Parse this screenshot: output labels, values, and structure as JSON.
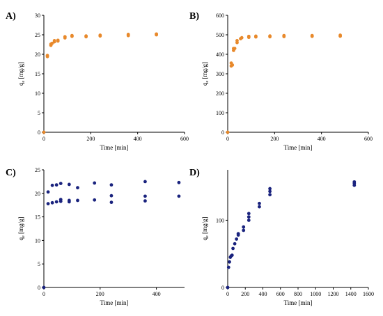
{
  "chart_data": [
    {
      "type": "scatter",
      "panel_label": "A)",
      "xlabel": "Time [min]",
      "ylabel": "qe [mg/g]",
      "ylabel_main": "q",
      "ylabel_sub": "e",
      "ylabel_unit": " [mg/g]",
      "xlim": [
        0,
        600
      ],
      "ylim": [
        0,
        30
      ],
      "xticks": [
        0,
        200,
        400,
        600
      ],
      "yticks": [
        0,
        5,
        10,
        15,
        20,
        25,
        30
      ],
      "marker_color": "#e8892b",
      "series": [
        {
          "points": [
            [
              0,
              0
            ],
            [
              15,
              19.4
            ],
            [
              15,
              19.7
            ],
            [
              30,
              22.3
            ],
            [
              30,
              22.6
            ],
            [
              35,
              22.8
            ],
            [
              45,
              23.2
            ],
            [
              45,
              23.5
            ],
            [
              60,
              23.4
            ],
            [
              60,
              23.6
            ],
            [
              90,
              24.5
            ],
            [
              90,
              24.2
            ],
            [
              120,
              24.8
            ],
            [
              120,
              24.6
            ],
            [
              180,
              24.7
            ],
            [
              180,
              24.5
            ],
            [
              240,
              24.9
            ],
            [
              240,
              24.7
            ],
            [
              360,
              25.1
            ],
            [
              360,
              24.8
            ],
            [
              480,
              25.2
            ],
            [
              480,
              25.0
            ]
          ]
        }
      ]
    },
    {
      "type": "scatter",
      "panel_label": "B)",
      "xlabel": "Time [min]",
      "ylabel": "qe [mg/g]",
      "ylabel_main": "q",
      "ylabel_sub": "e",
      "ylabel_unit": " [mg/g]",
      "xlim": [
        0,
        600
      ],
      "ylim": [
        0,
        600
      ],
      "xticks": [
        0,
        200,
        400,
        600
      ],
      "yticks": [
        0,
        100,
        200,
        300,
        400,
        500,
        600
      ],
      "marker_color": "#e8892b",
      "series": [
        {
          "points": [
            [
              0,
              0
            ],
            [
              15,
              340
            ],
            [
              15,
              355
            ],
            [
              20,
              345
            ],
            [
              25,
              420
            ],
            [
              25,
              430
            ],
            [
              30,
              430
            ],
            [
              40,
              460
            ],
            [
              40,
              470
            ],
            [
              55,
              480
            ],
            [
              60,
              485
            ],
            [
              90,
              487
            ],
            [
              90,
              492
            ],
            [
              120,
              489
            ],
            [
              120,
              493
            ],
            [
              180,
              490
            ],
            [
              180,
              494
            ],
            [
              240,
              491
            ],
            [
              240,
              496
            ],
            [
              360,
              492
            ],
            [
              360,
              496
            ],
            [
              480,
              493
            ],
            [
              480,
              498
            ]
          ]
        }
      ]
    },
    {
      "type": "scatter",
      "panel_label": "C)",
      "xlabel": "Time [min]",
      "ylabel": "qe [mg/g]",
      "ylabel_main": "q",
      "ylabel_sub": "e",
      "ylabel_unit": " [mg/g]",
      "xlim": [
        0,
        500
      ],
      "ylim": [
        0,
        25
      ],
      "xticks": [
        0,
        200,
        400
      ],
      "yticks": [
        0,
        5,
        10,
        15,
        20,
        25
      ],
      "marker_color": "#1a237e",
      "series": [
        {
          "points": [
            [
              0,
              0
            ],
            [
              15,
              17.8
            ],
            [
              15,
              20.3
            ],
            [
              30,
              18.0
            ],
            [
              30,
              21.7
            ],
            [
              45,
              18.2
            ],
            [
              45,
              21.8
            ],
            [
              60,
              18.3
            ],
            [
              60,
              18.7
            ],
            [
              60,
              22.1
            ],
            [
              90,
              18.2
            ],
            [
              90,
              18.5
            ],
            [
              90,
              21.9
            ],
            [
              120,
              18.5
            ],
            [
              120,
              21.2
            ],
            [
              180,
              18.6
            ],
            [
              180,
              22.2
            ],
            [
              240,
              18.1
            ],
            [
              240,
              19.5
            ],
            [
              240,
              21.8
            ],
            [
              360,
              18.4
            ],
            [
              360,
              19.4
            ],
            [
              360,
              22.5
            ],
            [
              480,
              19.4
            ],
            [
              480,
              22.3
            ]
          ]
        }
      ]
    },
    {
      "type": "scatter",
      "panel_label": "D)",
      "xlabel": "Time [min]",
      "ylabel": "qe [mg/g]",
      "ylabel_main": "q",
      "ylabel_sub": "e",
      "ylabel_unit": " [mg/g]",
      "xlim": [
        0,
        1600
      ],
      "ylim": [
        0,
        175
      ],
      "xticks": [
        0,
        200,
        400,
        600,
        800,
        1000,
        1200,
        1400,
        1600
      ],
      "yticks": [
        0,
        100
      ],
      "marker_color": "#1a237e",
      "series": [
        {
          "points": [
            [
              0,
              0
            ],
            [
              10,
              30
            ],
            [
              20,
              38
            ],
            [
              30,
              45
            ],
            [
              40,
              47
            ],
            [
              50,
              48
            ],
            [
              60,
              58
            ],
            [
              80,
              65
            ],
            [
              100,
              72
            ],
            [
              120,
              78
            ],
            [
              120,
              80
            ],
            [
              180,
              85
            ],
            [
              180,
              90
            ],
            [
              240,
              100
            ],
            [
              240,
              105
            ],
            [
              240,
              110
            ],
            [
              360,
              120
            ],
            [
              360,
              125
            ],
            [
              480,
              138
            ],
            [
              480,
              143
            ],
            [
              480,
              147
            ],
            [
              1440,
              152
            ],
            [
              1440,
              155
            ],
            [
              1440,
              157
            ]
          ]
        }
      ]
    }
  ]
}
